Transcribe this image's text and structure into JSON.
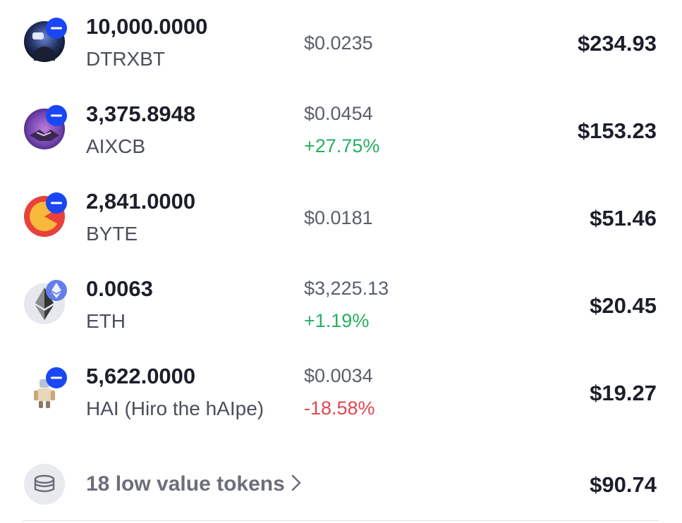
{
  "tokens": [
    {
      "amount": "10,000.0000",
      "symbol": "DTRXBT",
      "price": "$0.0235",
      "change": "",
      "value": "$234.93",
      "icon": "dtrxbt-token-icon"
    },
    {
      "amount": "3,375.8948",
      "symbol": "AIXCB",
      "price": "$0.0454",
      "change": "+27.75%",
      "value": "$153.23",
      "icon": "aixcb-token-icon"
    },
    {
      "amount": "2,841.0000",
      "symbol": "BYTE",
      "price": "$0.0181",
      "change": "",
      "value": "$51.46",
      "icon": "byte-token-icon"
    },
    {
      "amount": "0.0063",
      "symbol": "ETH",
      "price": "$3,225.13",
      "change": "+1.19%",
      "value": "$20.45",
      "icon": "eth-token-icon"
    },
    {
      "amount": "5,622.0000",
      "symbol": "HAI (Hiro the hAIpe)",
      "price": "$0.0034",
      "change": "-18.58%",
      "value": "$19.27",
      "icon": "hai-token-icon"
    }
  ],
  "low_value": {
    "label": "18 low value tokens",
    "value": "$90.74",
    "icon": "coins-stack-icon"
  },
  "colors": {
    "positive": "#27ae60",
    "negative": "#e0484f",
    "chain_badge": "#1a47f5",
    "eth_badge": "#627eea"
  }
}
